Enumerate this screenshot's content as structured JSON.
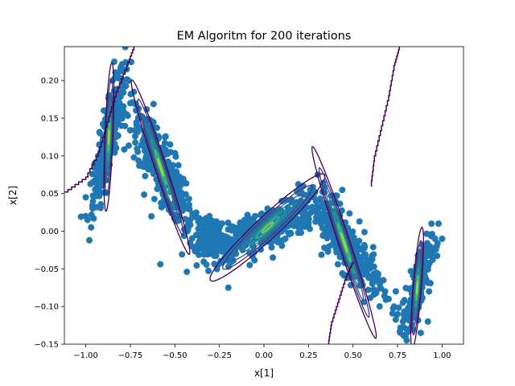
{
  "chart_data": {
    "type": "scatter",
    "title": "EM Algoritm for 200 iterations",
    "xlabel": "x[1]",
    "ylabel": "x[2]",
    "xlim": [
      -1.12,
      1.12
    ],
    "ylim": [
      -0.15,
      0.245
    ],
    "x_ticks": [
      -1.0,
      -0.75,
      -0.5,
      -0.25,
      0.0,
      0.25,
      0.5,
      0.75,
      1.0
    ],
    "x_tick_labels": [
      "−1.00",
      "−0.75",
      "−0.50",
      "−0.25",
      "0.00",
      "0.25",
      "0.50",
      "0.75",
      "1.00"
    ],
    "y_ticks": [
      -0.15,
      -0.1,
      -0.05,
      0.0,
      0.05,
      0.1,
      0.15,
      0.2
    ],
    "y_tick_labels": [
      "−0.15",
      "−0.10",
      "−0.05",
      "0.00",
      "0.05",
      "0.10",
      "0.15",
      "0.20"
    ],
    "grid": false,
    "scatter_color": "#1f77b4",
    "contour_colors": [
      "#440154",
      "#46327e",
      "#365c8d",
      "#277f8e",
      "#1fa187",
      "#4ac16d",
      "#a0da39"
    ],
    "points_approx": [
      [
        -1.0,
        0.045
      ],
      [
        -0.99,
        0.015
      ],
      [
        -0.98,
        -0.012
      ],
      [
        -0.97,
        0.005
      ],
      [
        -0.96,
        0.065
      ],
      [
        -0.95,
        0.09
      ],
      [
        -0.93,
        0.1
      ],
      [
        -0.92,
        0.13
      ],
      [
        -0.9,
        0.085
      ],
      [
        -0.89,
        0.16
      ],
      [
        -0.87,
        0.18
      ],
      [
        -0.86,
        0.12
      ],
      [
        -0.85,
        0.2
      ],
      [
        -0.84,
        0.225
      ],
      [
        -0.82,
        0.21
      ],
      [
        -0.81,
        0.17
      ],
      [
        -0.8,
        0.14
      ],
      [
        -0.79,
        0.19
      ],
      [
        -0.77,
        0.215
      ],
      [
        -0.76,
        0.2
      ],
      [
        -0.75,
        0.17
      ],
      [
        -0.73,
        0.185
      ],
      [
        -0.71,
        0.14
      ],
      [
        -0.7,
        0.15
      ],
      [
        -0.68,
        0.12
      ],
      [
        -0.65,
        0.13
      ],
      [
        -0.62,
        0.11
      ],
      [
        -0.6,
        0.1
      ],
      [
        -0.57,
        0.09
      ],
      [
        -0.55,
        0.07
      ],
      [
        -0.52,
        0.08
      ],
      [
        -0.5,
        0.055
      ],
      [
        -0.47,
        0.06
      ],
      [
        -0.45,
        0.04
      ],
      [
        -0.42,
        0.035
      ],
      [
        -0.4,
        0.02
      ],
      [
        -0.38,
        -0.005
      ],
      [
        -0.35,
        0.01
      ],
      [
        -0.33,
        -0.02
      ],
      [
        -0.3,
        -0.01
      ],
      [
        -0.28,
        -0.03
      ],
      [
        -0.25,
        -0.02
      ],
      [
        -0.22,
        -0.035
      ],
      [
        -0.2,
        -0.075
      ],
      [
        -0.18,
        -0.02
      ],
      [
        -0.15,
        -0.005
      ],
      [
        -0.12,
        -0.025
      ],
      [
        -0.1,
        0.01
      ],
      [
        -0.08,
        -0.045
      ],
      [
        -0.05,
        0.02
      ],
      [
        -0.02,
        -0.01
      ],
      [
        0.0,
        0.0
      ],
      [
        0.02,
        0.03
      ],
      [
        0.05,
        -0.035
      ],
      [
        0.08,
        0.015
      ],
      [
        0.1,
        0.04
      ],
      [
        0.12,
        -0.01
      ],
      [
        0.15,
        0.02
      ],
      [
        0.18,
        0.035
      ],
      [
        0.2,
        0.05
      ],
      [
        0.22,
        0.06
      ],
      [
        0.24,
        0.04
      ],
      [
        0.26,
        0.055
      ],
      [
        0.28,
        0.045
      ],
      [
        0.3,
        0.03
      ],
      [
        0.32,
        0.01
      ],
      [
        0.35,
        0.02
      ],
      [
        0.37,
        -0.005
      ],
      [
        0.4,
        0.005
      ],
      [
        0.42,
        -0.02
      ],
      [
        0.44,
        -0.03
      ],
      [
        0.47,
        -0.015
      ],
      [
        0.5,
        -0.04
      ],
      [
        0.52,
        -0.03
      ],
      [
        0.55,
        -0.05
      ],
      [
        0.57,
        -0.045
      ],
      [
        0.6,
        -0.06
      ],
      [
        0.63,
        -0.055
      ],
      [
        0.65,
        -0.07
      ],
      [
        0.68,
        -0.08
      ],
      [
        0.7,
        -0.09
      ],
      [
        0.73,
        -0.1
      ],
      [
        0.75,
        -0.11
      ],
      [
        0.78,
        -0.12
      ],
      [
        0.8,
        -0.13
      ],
      [
        0.82,
        -0.11
      ],
      [
        0.85,
        -0.09
      ],
      [
        0.87,
        -0.075
      ],
      [
        0.9,
        -0.06
      ],
      [
        0.92,
        -0.045
      ],
      [
        0.94,
        -0.03
      ],
      [
        0.96,
        -0.01
      ],
      [
        0.98,
        0.01
      ],
      [
        1.0,
        -0.01
      ],
      [
        0.97,
        -0.02
      ],
      [
        0.92,
        -0.12
      ],
      [
        0.88,
        -0.135
      ],
      [
        0.83,
        -0.125
      ],
      [
        0.78,
        -0.095
      ],
      [
        0.74,
        -0.08
      ]
    ],
    "dense_clusters": [
      {
        "cx": -0.87,
        "cy": 0.125,
        "sx": 0.045,
        "sy": 0.045,
        "rho": 0.85,
        "n": 260
      },
      {
        "cx": -0.58,
        "cy": 0.085,
        "sx": 0.09,
        "sy": 0.04,
        "rho": -0.85,
        "n": 300
      },
      {
        "cx": -0.3,
        "cy": -0.01,
        "sx": 0.06,
        "sy": 0.018,
        "rho": -0.5,
        "n": 180
      },
      {
        "cx": 0.02,
        "cy": 0.005,
        "sx": 0.16,
        "sy": 0.018,
        "rho": 0.75,
        "n": 360
      },
      {
        "cx": 0.45,
        "cy": -0.015,
        "sx": 0.1,
        "sy": 0.035,
        "rho": -0.85,
        "n": 300
      },
      {
        "cx": 0.86,
        "cy": -0.075,
        "sx": 0.04,
        "sy": 0.03,
        "rho": 0.75,
        "n": 220
      }
    ],
    "gaussian_components": [
      {
        "cx": -0.87,
        "cy": 0.125,
        "a": 0.1,
        "b": 0.022,
        "angle_deg": 80
      },
      {
        "cx": -0.58,
        "cy": 0.085,
        "a": 0.2,
        "b": 0.02,
        "angle_deg": -35
      },
      {
        "cx": 0.02,
        "cy": 0.005,
        "a": 0.33,
        "b": 0.02,
        "angle_deg": 12
      },
      {
        "cx": 0.45,
        "cy": -0.015,
        "a": 0.22,
        "b": 0.02,
        "angle_deg": -35
      },
      {
        "cx": 0.86,
        "cy": -0.075,
        "a": 0.085,
        "b": 0.022,
        "angle_deg": 70
      }
    ],
    "boundary_lines": [
      [
        [
          -1.12,
          0.052
        ],
        [
          -1.0,
          0.072
        ],
        [
          -0.93,
          0.105
        ],
        [
          -0.88,
          0.145
        ],
        [
          -0.83,
          0.185
        ],
        [
          -0.77,
          0.22
        ],
        [
          -0.73,
          0.245
        ]
      ],
      [
        [
          0.36,
          -0.15
        ],
        [
          0.38,
          -0.12
        ],
        [
          0.42,
          -0.09
        ],
        [
          0.46,
          -0.06
        ],
        [
          0.5,
          -0.04
        ]
      ],
      [
        [
          0.6,
          0.06
        ],
        [
          0.62,
          0.1
        ],
        [
          0.66,
          0.14
        ],
        [
          0.7,
          0.18
        ],
        [
          0.73,
          0.22
        ],
        [
          0.76,
          0.245
        ]
      ]
    ]
  }
}
